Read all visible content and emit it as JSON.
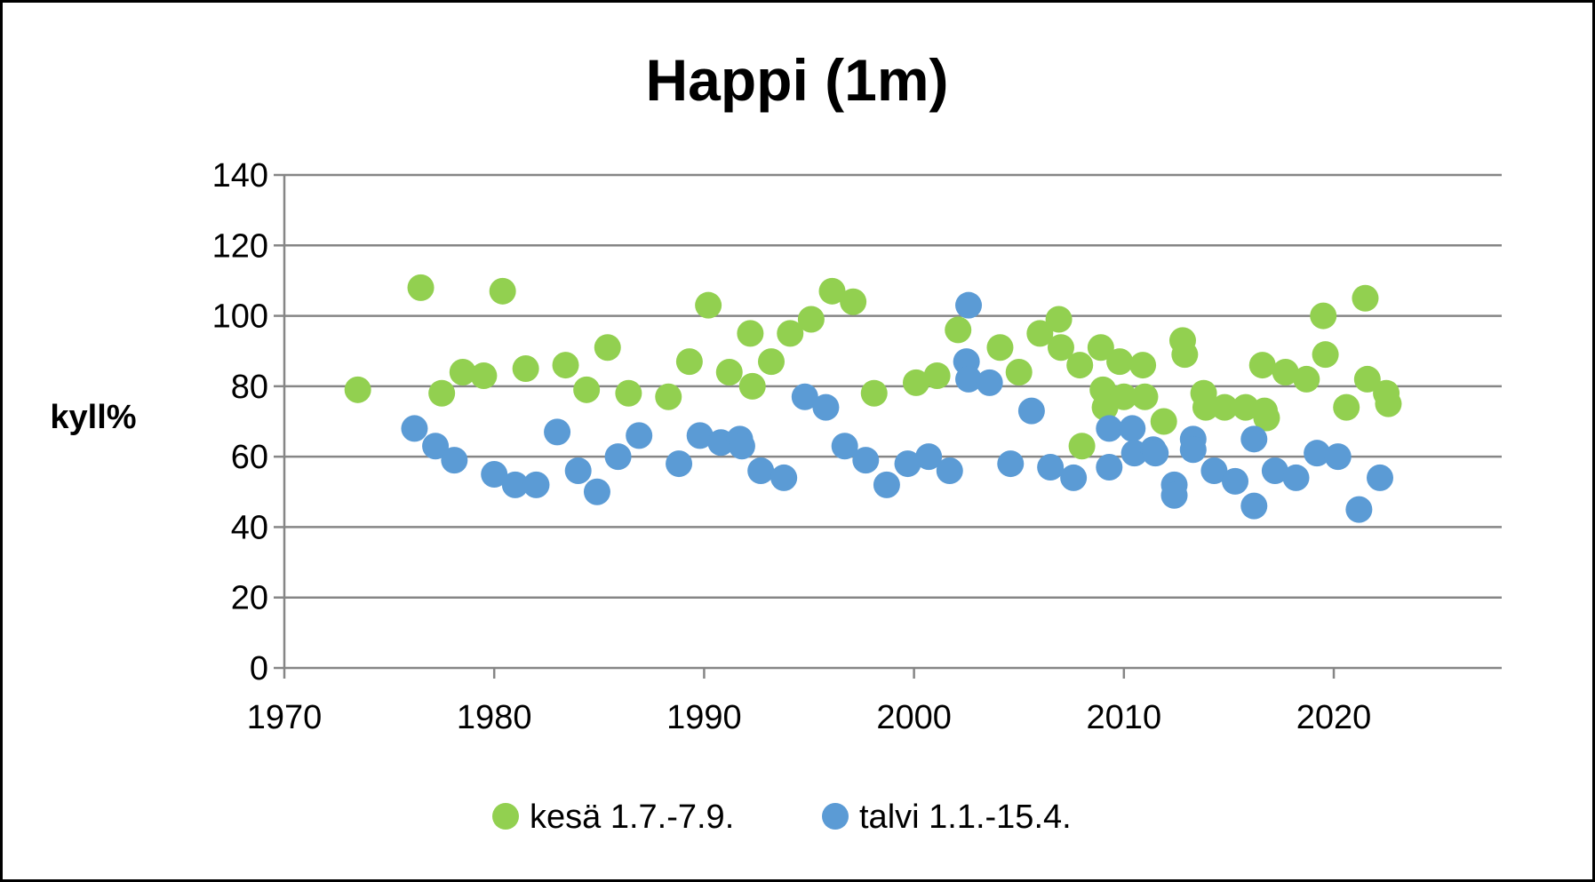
{
  "chart_data": {
    "type": "scatter",
    "title": "Happi (1m)",
    "xlabel": "",
    "ylabel": "kyll%",
    "xlim": [
      1970,
      2028
    ],
    "ylim": [
      0,
      140
    ],
    "x_ticks": [
      "1970",
      "1980",
      "1990",
      "2000",
      "2010",
      "2020"
    ],
    "y_ticks": [
      "0",
      "20",
      "40",
      "60",
      "80",
      "100",
      "120",
      "140"
    ],
    "grid": "horizontal",
    "legend_position": "bottom",
    "series": [
      {
        "name": "kesä 1.7.-7.9.",
        "color": "#92d050",
        "points": [
          [
            1973.5,
            79
          ],
          [
            1976.5,
            108
          ],
          [
            1977.5,
            78
          ],
          [
            1978.5,
            84
          ],
          [
            1979.5,
            83
          ],
          [
            1980.4,
            107
          ],
          [
            1981.5,
            85
          ],
          [
            1983.4,
            86
          ],
          [
            1984.4,
            79
          ],
          [
            1985.4,
            91
          ],
          [
            1986.4,
            78
          ],
          [
            1988.3,
            77
          ],
          [
            1989.3,
            87
          ],
          [
            1990.2,
            103
          ],
          [
            1991.2,
            84
          ],
          [
            1992.2,
            95
          ],
          [
            1992.3,
            80
          ],
          [
            1993.2,
            87
          ],
          [
            1994.1,
            95
          ],
          [
            1995.1,
            99
          ],
          [
            1996.1,
            107
          ],
          [
            1997.1,
            104
          ],
          [
            1998.1,
            78
          ],
          [
            2000.1,
            81
          ],
          [
            2001.1,
            83
          ],
          [
            2002.1,
            96
          ],
          [
            2004.1,
            91
          ],
          [
            2005.0,
            84
          ],
          [
            2006.0,
            95
          ],
          [
            2006.9,
            99
          ],
          [
            2007.0,
            91
          ],
          [
            2007.9,
            86
          ],
          [
            2008.0,
            63
          ],
          [
            2008.9,
            91
          ],
          [
            2009.0,
            79
          ],
          [
            2009.1,
            74
          ],
          [
            2009.8,
            87
          ],
          [
            2010.0,
            77
          ],
          [
            2010.9,
            86
          ],
          [
            2011.0,
            77
          ],
          [
            2011.9,
            70
          ],
          [
            2012.8,
            93
          ],
          [
            2012.9,
            89
          ],
          [
            2013.8,
            78
          ],
          [
            2013.9,
            74
          ],
          [
            2014.8,
            74
          ],
          [
            2015.8,
            74
          ],
          [
            2016.6,
            86
          ],
          [
            2016.7,
            73
          ],
          [
            2016.8,
            71
          ],
          [
            2017.7,
            84
          ],
          [
            2018.7,
            82
          ],
          [
            2019.5,
            100
          ],
          [
            2019.6,
            89
          ],
          [
            2020.6,
            74
          ],
          [
            2021.5,
            105
          ],
          [
            2021.6,
            82
          ],
          [
            2022.5,
            78
          ],
          [
            2022.6,
            75
          ]
        ]
      },
      {
        "name": "talvi 1.1.-15.4.",
        "color": "#5b9bd5",
        "points": [
          [
            1976.2,
            68
          ],
          [
            1977.2,
            63
          ],
          [
            1978.1,
            59
          ],
          [
            1980.0,
            55
          ],
          [
            1981.0,
            52
          ],
          [
            1982.0,
            52
          ],
          [
            1983.0,
            67
          ],
          [
            1984.0,
            56
          ],
          [
            1984.9,
            50
          ],
          [
            1985.9,
            60
          ],
          [
            1986.9,
            66
          ],
          [
            1988.8,
            58
          ],
          [
            1989.8,
            66
          ],
          [
            1990.8,
            64
          ],
          [
            1991.7,
            65
          ],
          [
            1991.8,
            63
          ],
          [
            1992.7,
            56
          ],
          [
            1993.8,
            54
          ],
          [
            1994.8,
            77
          ],
          [
            1995.8,
            74
          ],
          [
            1996.7,
            63
          ],
          [
            1997.7,
            59
          ],
          [
            1998.7,
            52
          ],
          [
            1999.7,
            58
          ],
          [
            2000.7,
            60
          ],
          [
            2001.7,
            56
          ],
          [
            2002.6,
            103
          ],
          [
            2002.5,
            87
          ],
          [
            2002.6,
            82
          ],
          [
            2003.6,
            81
          ],
          [
            2004.6,
            58
          ],
          [
            2005.6,
            73
          ],
          [
            2006.5,
            57
          ],
          [
            2007.6,
            54
          ],
          [
            2009.3,
            68
          ],
          [
            2009.3,
            57
          ],
          [
            2010.4,
            68
          ],
          [
            2010.5,
            61
          ],
          [
            2011.4,
            62
          ],
          [
            2011.5,
            61
          ],
          [
            2012.4,
            52
          ],
          [
            2012.4,
            49
          ],
          [
            2013.3,
            65
          ],
          [
            2013.3,
            62
          ],
          [
            2014.3,
            56
          ],
          [
            2015.3,
            53
          ],
          [
            2016.2,
            65
          ],
          [
            2016.2,
            46
          ],
          [
            2017.2,
            56
          ],
          [
            2018.2,
            54
          ],
          [
            2019.2,
            61
          ],
          [
            2020.2,
            60
          ],
          [
            2021.2,
            45
          ],
          [
            2022.2,
            54
          ]
        ]
      }
    ]
  }
}
